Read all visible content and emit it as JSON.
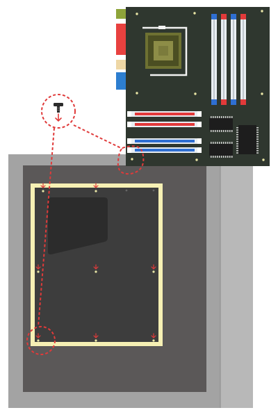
{
  "colors": {
    "case_outer": "#a3a3a3",
    "case_side": "#b8b8b8",
    "case_panel": "#5b5858",
    "tray": "#3d3d3d",
    "tray_window": "#2c2c2c",
    "highlight_frame": "#f6f0b4",
    "board": "#2f372f",
    "io_green": "#8ea43a",
    "io_red": "#e8413f",
    "io_tan": "#eed7a5",
    "io_blue": "#2d7ed0",
    "ram_red": "#e23a3a",
    "ram_blue": "#2f6fd2",
    "ram_slot": "#e9eef2",
    "cpu_outer": "#6e7132",
    "cpu_inner": "#4b4e22",
    "cpu_die": "#8d8d47",
    "chip": "#1d1d1d",
    "mount_dot": "#e9e6a6",
    "callout": "#e03a3a",
    "screw": "#2c2c2c"
  },
  "icons": {
    "screw": "screw-icon",
    "arrow": "down-arrow-icon",
    "standoff": "standoff-hole-icon"
  }
}
